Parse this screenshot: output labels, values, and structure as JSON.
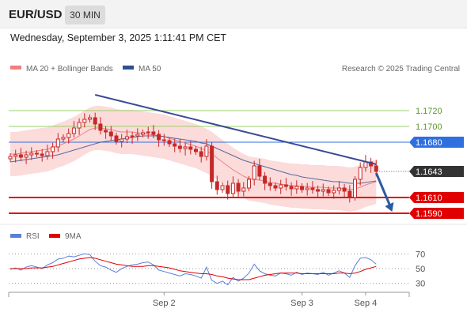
{
  "header": {
    "symbol": "EUR/USD",
    "timeframe": "30 MIN",
    "datetime": "Wednesday, September 3, 2025 1:11:41 PM CET"
  },
  "colors": {
    "bollinger": "#f08080",
    "bollinger_band_fill": "#fcd5d5",
    "ma50": "#2f4f8f",
    "candle": "#c62828",
    "trendline": "#3a4a94",
    "resistance": "#9bcf6b",
    "pivot": "#2f6fe0",
    "support": "#e00000",
    "rsi": "#5b7fd8",
    "rsi_ma": "#e00000",
    "arrow": "#2c5aa0",
    "current_price_tag": "#333333"
  },
  "chart_data": [
    {
      "type": "candlestick",
      "title": "",
      "legend": [
        {
          "name": "MA 20 + Bollinger Bands",
          "color": "#f08080"
        },
        {
          "name": "MA 50",
          "color": "#2f4f8f"
        }
      ],
      "legend_position": "top-left",
      "watermark": "Research © 2025 Trading Central",
      "ylim": [
        1.1578,
        1.1762
      ],
      "x_labels": [
        "Sep 2",
        "Sep 3",
        "Sep 4"
      ],
      "x_label_index": [
        29,
        55,
        67
      ],
      "closes": [
        1.1662,
        1.1664,
        1.1661,
        1.1664,
        1.1666,
        1.1665,
        1.1663,
        1.1668,
        1.1674,
        1.1684,
        1.1686,
        1.1691,
        1.1698,
        1.1705,
        1.1709,
        1.1711,
        1.1703,
        1.1695,
        1.1693,
        1.1688,
        1.1681,
        1.1684,
        1.1687,
        1.1688,
        1.169,
        1.1692,
        1.1693,
        1.169,
        1.1683,
        1.1682,
        1.1678,
        1.1675,
        1.1672,
        1.1674,
        1.1671,
        1.1668,
        1.1662,
        1.1675,
        1.163,
        1.162,
        1.1625,
        1.1615,
        1.1628,
        1.1618,
        1.1622,
        1.1633,
        1.165,
        1.1637,
        1.1628,
        1.1625,
        1.1622,
        1.1626,
        1.1624,
        1.1621,
        1.1624,
        1.162,
        1.1622,
        1.162,
        1.1618,
        1.162,
        1.1616,
        1.1619,
        1.1622,
        1.1618,
        1.161,
        1.1633,
        1.1648,
        1.1655,
        1.165,
        1.1643
      ],
      "ma20": [
        1.1665,
        1.1665,
        1.1666,
        1.1667,
        1.1668,
        1.1669,
        1.167,
        1.1671,
        1.1673,
        1.1676,
        1.1678,
        1.1681,
        1.1684,
        1.1688,
        1.1692,
        1.1696,
        1.1698,
        1.1698,
        1.1697,
        1.1696,
        1.1694,
        1.1693,
        1.1693,
        1.1693,
        1.1692,
        1.1691,
        1.169,
        1.1689,
        1.1688,
        1.1687,
        1.1685,
        1.1683,
        1.1681,
        1.1679,
        1.1677,
        1.1675,
        1.1672,
        1.1669,
        1.1665,
        1.166,
        1.1655,
        1.165,
        1.1645,
        1.1641,
        1.1637,
        1.1634,
        1.1633,
        1.1632,
        1.1631,
        1.1629,
        1.1628,
        1.1627,
        1.1626,
        1.1625,
        1.1625,
        1.1624,
        1.1624,
        1.1623,
        1.1623,
        1.1623,
        1.1622,
        1.1622,
        1.1622,
        1.1621,
        1.162,
        1.1621,
        1.1623,
        1.1626,
        1.1628,
        1.163
      ],
      "ma50": [
        1.1655,
        1.1656,
        1.1657,
        1.1658,
        1.1659,
        1.166,
        1.1661,
        1.1662,
        1.1663,
        1.1664,
        1.1666,
        1.1668,
        1.167,
        1.1672,
        1.1674,
        1.1676,
        1.1678,
        1.168,
        1.1681,
        1.1682,
        1.1683,
        1.1684,
        1.1685,
        1.1686,
        1.1687,
        1.1688,
        1.1688,
        1.1688,
        1.1688,
        1.1687,
        1.1686,
        1.1685,
        1.1684,
        1.1683,
        1.1682,
        1.1681,
        1.1679,
        1.1678,
        1.1675,
        1.1672,
        1.1669,
        1.1666,
        1.1663,
        1.166,
        1.1657,
        1.1655,
        1.1653,
        1.1651,
        1.1649,
        1.1647,
        1.1645,
        1.1643,
        1.1641,
        1.1639,
        1.1638,
        1.1636,
        1.1635,
        1.1634,
        1.1633,
        1.1632,
        1.1631,
        1.163,
        1.163,
        1.1629,
        1.1628,
        1.1628,
        1.1628,
        1.1629,
        1.163,
        1.1631
      ],
      "bollinger_width": 0.0028,
      "trendline": {
        "x": [
          16,
          69
        ],
        "y": [
          1.174,
          1.1652
        ]
      },
      "arrow": {
        "x": [
          69,
          72
        ],
        "y": [
          1.1641,
          1.1592
        ]
      },
      "levels": [
        {
          "label": "1.1720",
          "value": 1.172,
          "kind": "resistance"
        },
        {
          "label": "1.1700",
          "value": 1.17,
          "kind": "resistance"
        },
        {
          "label": "1.1680",
          "value": 1.168,
          "kind": "pivot"
        },
        {
          "label": "1.1643",
          "value": 1.1643,
          "kind": "current"
        },
        {
          "label": "1.1610",
          "value": 1.161,
          "kind": "support"
        },
        {
          "label": "1.1590",
          "value": 1.159,
          "kind": "support"
        }
      ]
    },
    {
      "type": "line",
      "title": "",
      "legend": [
        {
          "name": "RSI",
          "color": "#5b7fd8"
        },
        {
          "name": "9MA",
          "color": "#e00000"
        }
      ],
      "legend_position": "top-left",
      "y_ticks": [
        70,
        50,
        30
      ],
      "ylim": [
        20,
        80
      ],
      "rsi": [
        49,
        51,
        48,
        52,
        54,
        52,
        50,
        55,
        58,
        63,
        64,
        67,
        66,
        68,
        70,
        69,
        60,
        54,
        52,
        48,
        45,
        50,
        53,
        55,
        56,
        58,
        59,
        55,
        48,
        46,
        44,
        42,
        40,
        43,
        42,
        40,
        37,
        52,
        34,
        30,
        33,
        28,
        38,
        33,
        37,
        44,
        56,
        47,
        43,
        41,
        40,
        44,
        43,
        41,
        45,
        42,
        44,
        43,
        42,
        45,
        41,
        44,
        47,
        44,
        38,
        54,
        64,
        65,
        62,
        56
      ],
      "rsi_ma": [
        50,
        50,
        50,
        50,
        51,
        51,
        51,
        52,
        53,
        55,
        57,
        59,
        61,
        63,
        64,
        65,
        64,
        62,
        60,
        58,
        56,
        55,
        54,
        53,
        53,
        53,
        54,
        54,
        53,
        52,
        51,
        49,
        47,
        46,
        45,
        44,
        43,
        43,
        42,
        40,
        39,
        37,
        36,
        35,
        35,
        35,
        37,
        39,
        41,
        42,
        43,
        44,
        44,
        44,
        44,
        43,
        43,
        43,
        43,
        43,
        43,
        43,
        44,
        44,
        43,
        44,
        46,
        49,
        51,
        53
      ]
    }
  ]
}
